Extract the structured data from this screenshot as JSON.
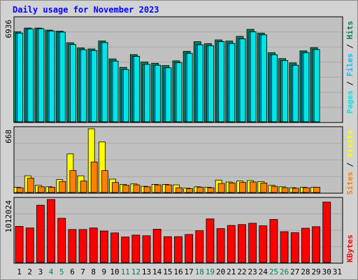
{
  "title": "Daily usage for November 2023",
  "colors": {
    "hits": "#00805c",
    "files": "#00bfff",
    "pages": "#00e6e6",
    "sites": "#ff8000",
    "visits": "#ffff00",
    "kbytes": "#ff0000",
    "weekend": "#00805c",
    "weekday": "#000000"
  },
  "side_labels": {
    "top": [
      "Pages",
      "Files",
      "Hits"
    ],
    "middle": [
      "Sites",
      "Visits"
    ],
    "bottom": [
      "KBytes"
    ]
  },
  "chart_data": [
    {
      "type": "bar",
      "panel": "hits-files-pages",
      "ylabel": "6936",
      "ylim": [
        0,
        6936
      ],
      "categories": [
        "1",
        "2",
        "3",
        "4",
        "5",
        "6",
        "7",
        "8",
        "9",
        "10",
        "11",
        "12",
        "13",
        "14",
        "15",
        "16",
        "17",
        "18",
        "19",
        "20",
        "21",
        "22",
        "23",
        "24",
        "25",
        "26",
        "27",
        "28",
        "29",
        "30",
        "31"
      ],
      "series": [
        {
          "name": "Hits",
          "values": [
            6070,
            6320,
            6320,
            6180,
            6110,
            5330,
            4980,
            4910,
            5450,
            4240,
            3670,
            4530,
            4030,
            3940,
            3790,
            4110,
            4750,
            5400,
            5270,
            5520,
            5440,
            5760,
            6230,
            5980,
            4660,
            4260,
            3970,
            4780,
            5000,
            0,
            0
          ]
        },
        {
          "name": "Files",
          "values": [
            5980,
            6260,
            6270,
            6120,
            6040,
            5210,
            4860,
            4800,
            5340,
            4090,
            3520,
            4410,
            3870,
            3810,
            3640,
            3980,
            4610,
            5190,
            5130,
            5400,
            5280,
            5590,
            6070,
            5860,
            4520,
            4130,
            3810,
            4660,
            4870,
            0,
            0
          ]
        },
        {
          "name": "Pages",
          "values": [
            5980,
            6260,
            6270,
            6120,
            6040,
            5210,
            4860,
            4800,
            5340,
            4090,
            3520,
            4410,
            3870,
            3810,
            3640,
            3980,
            4610,
            5190,
            5130,
            5400,
            5280,
            5590,
            6070,
            5860,
            4520,
            4130,
            3810,
            4660,
            4870,
            0,
            0
          ]
        }
      ]
    },
    {
      "type": "bar",
      "panel": "visits-sites",
      "ylabel": "668",
      "ylim": [
        0,
        668
      ],
      "categories": [
        "1",
        "2",
        "3",
        "4",
        "5",
        "6",
        "7",
        "8",
        "9",
        "10",
        "11",
        "12",
        "13",
        "14",
        "15",
        "16",
        "17",
        "18",
        "19",
        "20",
        "21",
        "22",
        "23",
        "24",
        "25",
        "26",
        "27",
        "28",
        "29",
        "30",
        "31"
      ],
      "series": [
        {
          "name": "Visits",
          "values": [
            55,
            175,
            75,
            60,
            135,
            405,
            175,
            668,
            530,
            140,
            85,
            90,
            65,
            85,
            85,
            80,
            45,
            60,
            55,
            130,
            110,
            120,
            125,
            115,
            75,
            60,
            50,
            55,
            55,
            0,
            0
          ]
        },
        {
          "name": "Sites",
          "values": [
            50,
            150,
            60,
            55,
            115,
            230,
            120,
            320,
            230,
            105,
            75,
            80,
            60,
            80,
            80,
            50,
            40,
            55,
            50,
            95,
            100,
            105,
            110,
            100,
            65,
            50,
            45,
            50,
            55,
            0,
            0
          ]
        }
      ]
    },
    {
      "type": "bar",
      "panel": "kbytes",
      "ylabel": "1012024",
      "ylim": [
        0,
        1012024
      ],
      "categories": [
        "1",
        "2",
        "3",
        "4",
        "5",
        "6",
        "7",
        "8",
        "9",
        "10",
        "11",
        "12",
        "13",
        "14",
        "15",
        "16",
        "17",
        "18",
        "19",
        "20",
        "21",
        "22",
        "23",
        "24",
        "25",
        "26",
        "27",
        "28",
        "29",
        "30",
        "31"
      ],
      "series": [
        {
          "name": "KBytes",
          "values": [
            580000,
            555000,
            920000,
            1012024,
            710000,
            530000,
            530000,
            555000,
            505000,
            475000,
            410000,
            440000,
            430000,
            535000,
            415000,
            415000,
            450000,
            510000,
            700000,
            545000,
            595000,
            610000,
            630000,
            590000,
            692000,
            495000,
            480000,
            550000,
            575000,
            970000,
            0
          ]
        }
      ]
    }
  ]
}
